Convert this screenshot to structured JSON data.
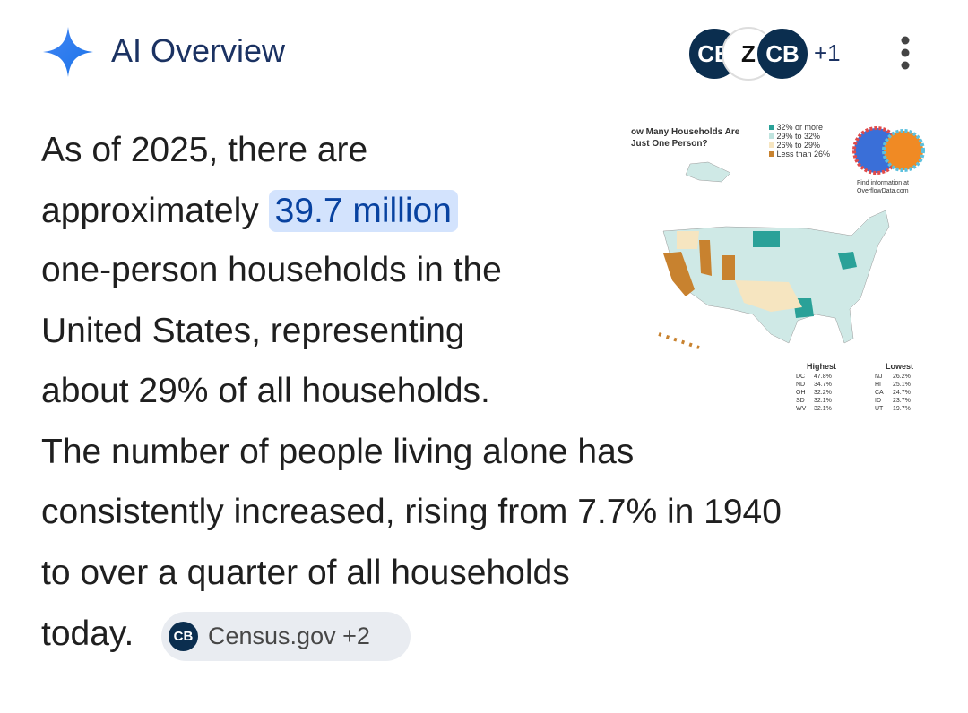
{
  "header": {
    "title": "AI Overview",
    "source_icons": [
      "CB",
      "Z",
      "CB"
    ],
    "more_sources": "+1"
  },
  "body": {
    "lines": [
      "As of 2025, there are",
      "approximately",
      "one-person households in the",
      "United States, representing",
      "about 29% of all households.",
      "The number of people living alone has",
      "consistently increased, rising from 7.7% in 1940",
      "to over a quarter of all households",
      "today."
    ],
    "highlight": "39.7 million",
    "source_chip": {
      "icon": "CB",
      "label": "Census.gov +2"
    }
  },
  "thumbnail": {
    "title_lines": [
      "ow Many Households Are",
      "Just One Person?"
    ],
    "legend": [
      "32% or more",
      "29% to 32%",
      "26% to 29%",
      "Less than 26%"
    ],
    "find_info": [
      "Find information at",
      "OverflowData.com"
    ],
    "highest": {
      "heading": "Highest",
      "rows": [
        [
          "DC",
          "47.8%"
        ],
        [
          "ND",
          "34.7%"
        ],
        [
          "OH",
          "32.2%"
        ],
        [
          "SD",
          "32.1%"
        ],
        [
          "WV",
          "32.1%"
        ]
      ]
    },
    "lowest": {
      "heading": "Lowest",
      "rows": [
        [
          "NJ",
          "26.2%"
        ],
        [
          "HI",
          "25.1%"
        ],
        [
          "CA",
          "24.7%"
        ],
        [
          "ID",
          "23.7%"
        ],
        [
          "UT",
          "19.7%"
        ]
      ]
    }
  }
}
